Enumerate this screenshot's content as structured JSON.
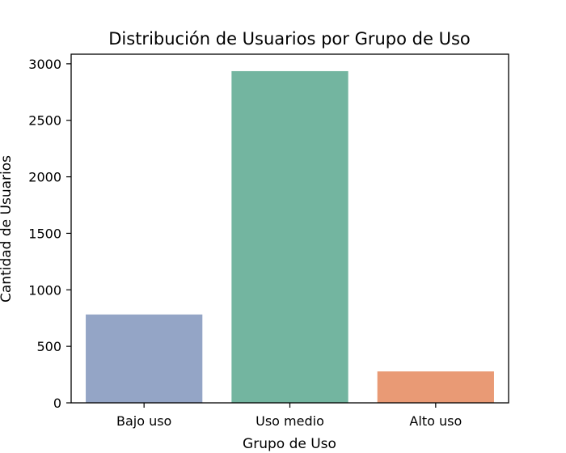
{
  "chart_data": {
    "type": "bar",
    "title": "Distribución de Usuarios por Grupo de Uso",
    "xlabel": "Grupo de Uso",
    "ylabel": "Cantidad de Usuarios",
    "categories": [
      "Bajo uso",
      "Uso medio",
      "Alto uso"
    ],
    "values": [
      782,
      2935,
      278
    ],
    "colors": [
      "#94a5c6",
      "#73b5a0",
      "#e99a75"
    ],
    "ylim": [
      0,
      3085
    ],
    "yticks": [
      0,
      500,
      1000,
      1500,
      2000,
      2500,
      3000
    ],
    "grid": false,
    "legend": "none"
  }
}
